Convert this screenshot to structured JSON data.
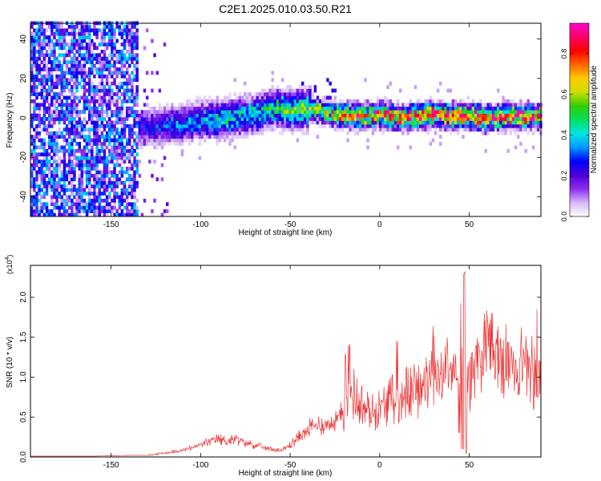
{
  "chart_data": [
    {
      "type": "heatmap",
      "title": "C2E1.2025.010.03.50.R21",
      "xlabel": "Height of straight line (km)",
      "ylabel": "Frequency (Hz)",
      "xlim": [
        -195,
        90
      ],
      "ylim": [
        -50,
        48
      ],
      "xticks": [
        -150,
        -100,
        -50,
        0,
        50
      ],
      "yticks": [
        -40,
        -20,
        0,
        20,
        40
      ],
      "colorbar": {
        "label": "Normalized spectral amplitude",
        "range": [
          0.0,
          0.95
        ],
        "ticks": [
          "0.0",
          "0.2",
          "0.4",
          "0.6",
          "0.8"
        ],
        "colormap": [
          "#ffffff",
          "#d6b7f7",
          "#8b2cf0",
          "#4b00d8",
          "#0000ff",
          "#0099ff",
          "#00e6e6",
          "#00e060",
          "#33cc00",
          "#ccdd00",
          "#ffcc00",
          "#ff6600",
          "#ff0000",
          "#ff0066",
          "#ff00cc"
        ]
      },
      "noise_region_below_x": -136,
      "ridge": {
        "x": [
          -136,
          -125,
          -110,
          -100,
          -90,
          -80,
          -70,
          -60,
          -50,
          -40,
          -30,
          -20,
          -10,
          0,
          10,
          20,
          30,
          40,
          50,
          60,
          70,
          80,
          90
        ],
        "center_hz": [
          -6,
          -5,
          -4,
          -2,
          -2,
          0,
          1,
          4,
          3,
          4,
          2,
          0,
          0,
          1,
          -1,
          0,
          1,
          0,
          0,
          -1,
          0,
          0,
          0
        ],
        "peak_amplitude": [
          0.25,
          0.3,
          0.35,
          0.4,
          0.45,
          0.45,
          0.45,
          0.5,
          0.55,
          0.6,
          0.65,
          0.75,
          0.8,
          0.85,
          0.85,
          0.9,
          0.9,
          0.9,
          0.9,
          0.9,
          0.9,
          0.9,
          0.9
        ]
      }
    },
    {
      "type": "line",
      "title": "",
      "xlabel": "Height of straight line (km)",
      "ylabel": "SNR (10 * v/v)",
      "y_multiplier": "(x10",
      "y_multiplier_exp": "4",
      "y_multiplier_close": ")",
      "color": "#ee3333",
      "xlim": [
        -195,
        90
      ],
      "ylim": [
        0,
        2.4
      ],
      "xticks": [
        -150,
        -100,
        -50,
        0,
        50
      ],
      "yticks": [
        "0.0",
        "0.5",
        "1.0",
        "1.5",
        "2.0"
      ],
      "series": [
        {
          "x": [
            -195,
            -180,
            -160,
            -140,
            -130,
            -120,
            -110,
            -100,
            -95,
            -90,
            -85,
            -80,
            -75,
            -70,
            -65,
            -60,
            -55,
            -50,
            -45,
            -40,
            -35,
            -30,
            -25,
            -20,
            -18,
            -15,
            -12,
            -10,
            -5,
            0,
            5,
            10,
            15,
            20,
            25,
            30,
            35,
            40,
            45,
            47,
            50,
            55,
            60,
            65,
            70,
            75,
            80,
            85,
            90
          ],
          "values": [
            0.01,
            0.01,
            0.01,
            0.02,
            0.02,
            0.05,
            0.08,
            0.15,
            0.2,
            0.22,
            0.2,
            0.22,
            0.18,
            0.15,
            0.12,
            0.1,
            0.08,
            0.15,
            0.25,
            0.35,
            0.4,
            0.4,
            0.45,
            0.55,
            0.75,
            0.8,
            0.7,
            0.65,
            0.55,
            0.6,
            0.7,
            0.75,
            0.8,
            0.85,
            0.9,
            1.0,
            1.05,
            1.1,
            1.0,
            0.95,
            1.0,
            1.25,
            1.3,
            1.25,
            1.2,
            1.15,
            1.15,
            1.15,
            1.2
          ],
          "max_spikes": [
            [
              -19,
              1.4
            ],
            [
              -17,
              1.5
            ],
            [
              10,
              1.5
            ],
            [
              30,
              1.65
            ],
            [
              38,
              1.75
            ],
            [
              45,
              2.15
            ],
            [
              47,
              2.4
            ],
            [
              48,
              2.2
            ],
            [
              60,
              1.85
            ],
            [
              88,
              1.9
            ]
          ],
          "deep_dips": [
            [
              44,
              0.3
            ],
            [
              46,
              0.1
            ],
            [
              48,
              0.05
            ],
            [
              86,
              0.6
            ],
            [
              88,
              0.75
            ]
          ]
        }
      ]
    }
  ]
}
